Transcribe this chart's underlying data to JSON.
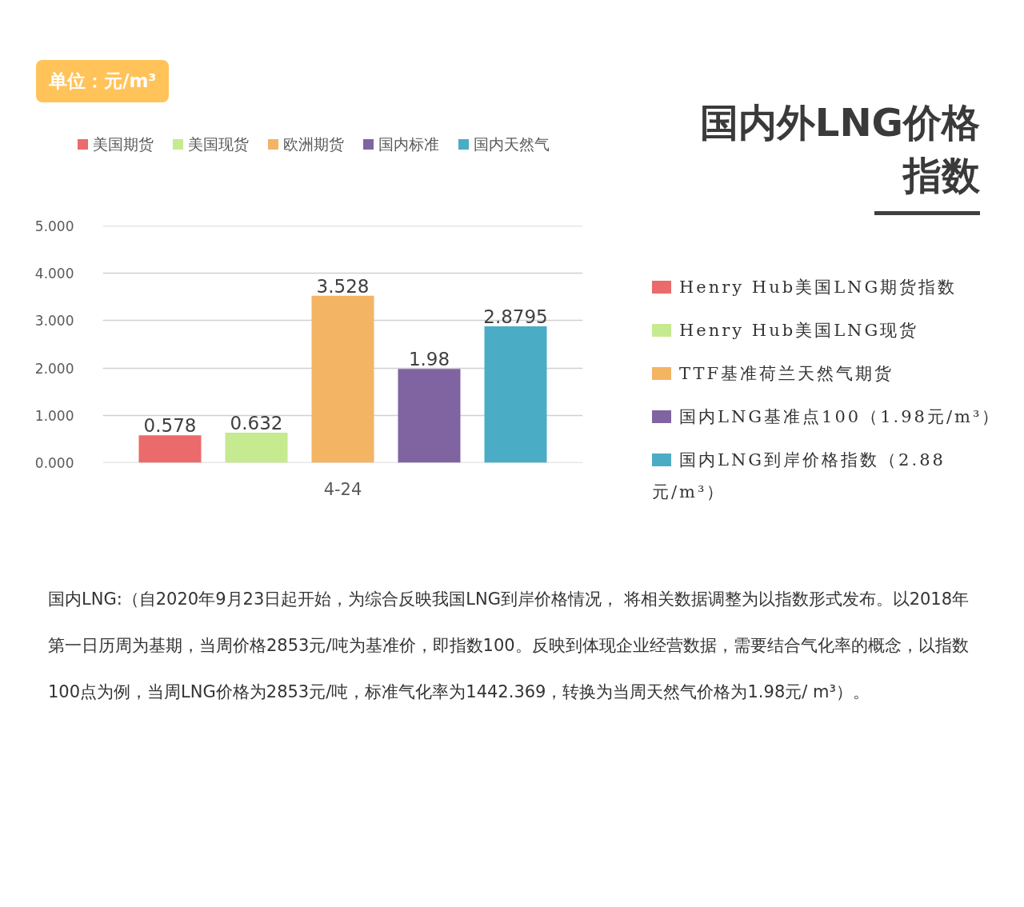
{
  "chart_data": {
    "type": "bar",
    "title": "国内外LNG价格指数",
    "categories": [
      "4-24"
    ],
    "series": [
      {
        "name": "美国期货",
        "color": "#EB6A6B",
        "values": [
          0.578
        ]
      },
      {
        "name": "美国现货",
        "color": "#C5EA8F",
        "values": [
          0.632
        ]
      },
      {
        "name": "欧洲期货",
        "color": "#F3B463",
        "values": [
          3.528
        ]
      },
      {
        "name": "国内标准",
        "color": "#8064A2",
        "values": [
          1.98
        ]
      },
      {
        "name": "国内天然气",
        "color": "#4BACC6",
        "values": [
          2.8795
        ]
      }
    ],
    "ylim": [
      0,
      5
    ],
    "yticks": [
      {
        "value": 0,
        "label": "0.000"
      },
      {
        "value": 1,
        "label": "1.000"
      },
      {
        "value": 2,
        "label": "2.000"
      },
      {
        "value": 3,
        "label": "3.000"
      },
      {
        "value": 4,
        "label": "4.000"
      },
      {
        "value": 5,
        "label": "5.000"
      }
    ],
    "grid": "y",
    "legend": "top",
    "data_labels": true,
    "annotations": [
      "单位：元/m³",
      "Henry Hub美国LNG期货指数",
      "Henry Hub美国LNG现货",
      "TTF基准荷兰天然气期货",
      "国内LNG基准点100（1.98元/m³）",
      "国内LNG到岸价格指数（2.88元/m³）",
      "国内LNG:（自2020年9月23日起开始，为综合反映我国LNG到岸价格情况， 将相关数据调整为以指数形式发布。以2018年第一日历周为基期，当周价格2853元/吨为基准价，即指数100。反映到体现企业经营数据，需要结合气化率的概念，以指数100点为例，当周LNG价格为2853元/吨，标准气化率为1442.369，转换为当周天然气价格为1.98元/ m³）。"
    ]
  }
}
